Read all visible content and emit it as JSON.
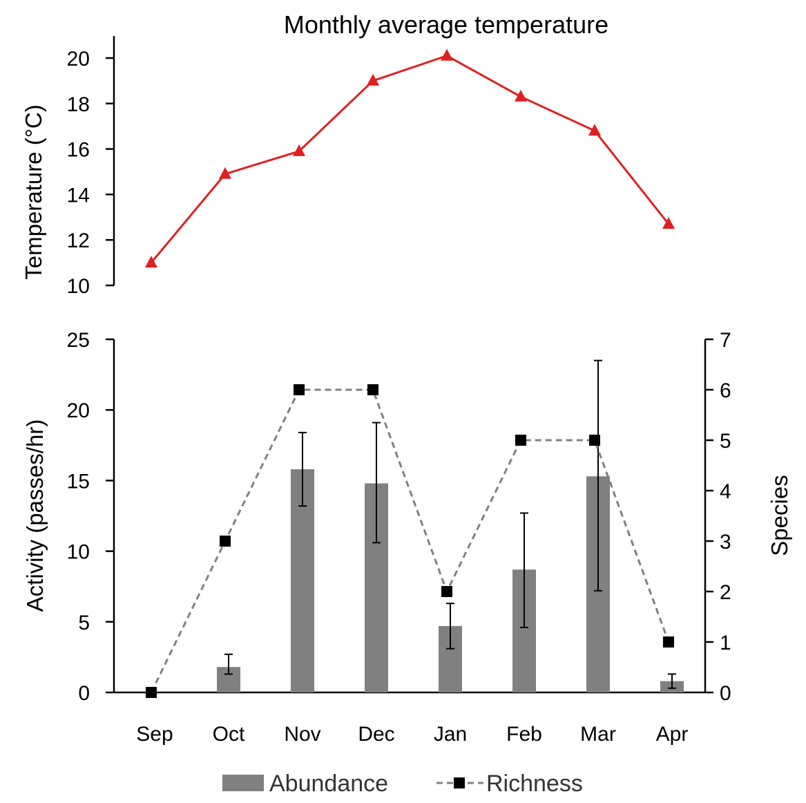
{
  "chart_data": [
    {
      "type": "line",
      "title": "Monthly average temperature",
      "ylabel": "Temperature (°C)",
      "ylim": [
        10,
        20
      ],
      "yticks": [
        10,
        12,
        14,
        16,
        18,
        20
      ],
      "categories": [
        "Sep",
        "Oct",
        "Nov",
        "Dec",
        "Jan",
        "Feb",
        "Mar",
        "Apr"
      ],
      "series": [
        {
          "values": [
            11.0,
            14.9,
            15.9,
            19.0,
            20.1,
            18.3,
            16.8,
            12.7
          ],
          "color": "#e02020",
          "marker": "triangle"
        }
      ]
    },
    {
      "type": "bar",
      "categories": [
        "Sep",
        "Oct",
        "Nov",
        "Dec",
        "Jan",
        "Feb",
        "Mar",
        "Apr"
      ],
      "ylabel": "Activity (passes/hr)",
      "y2label": "Species",
      "ylim": [
        0,
        25
      ],
      "yticks": [
        0,
        5,
        10,
        15,
        20,
        25
      ],
      "y2lim": [
        0,
        7
      ],
      "y2ticks": [
        0,
        1,
        2,
        3,
        4,
        5,
        6,
        7
      ],
      "legend_position": "bottom",
      "series": [
        {
          "name": "Abundance",
          "type": "bar",
          "axis": "left",
          "color": "#808080",
          "values": [
            0,
            1.8,
            15.8,
            14.8,
            4.7,
            8.7,
            15.3,
            0.8
          ],
          "error_low": [
            0,
            1.3,
            13.2,
            10.6,
            3.1,
            4.6,
            7.2,
            0.3
          ],
          "error_high": [
            0,
            2.7,
            18.4,
            19.1,
            6.3,
            12.7,
            23.5,
            1.3
          ]
        },
        {
          "name": "Richness",
          "type": "line",
          "axis": "right",
          "color": "#808080",
          "marker_color": "#000000",
          "marker": "square",
          "line_style": "dashed",
          "values": [
            0,
            3,
            6,
            6,
            2,
            5,
            5,
            1
          ]
        }
      ]
    }
  ]
}
